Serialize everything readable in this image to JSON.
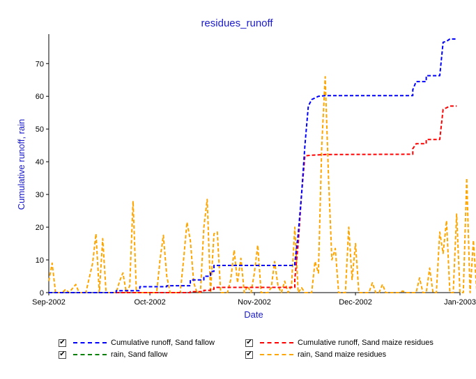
{
  "chart_data": {
    "type": "line",
    "title": "residues_runoff",
    "xlabel": "Date",
    "ylabel": "Cumulative runoff, rain",
    "xlim": [
      "2002-09-01",
      "2003-01-01"
    ],
    "ylim": [
      0,
      79
    ],
    "x_ticks": [
      "Sep-2002",
      "Oct-2002",
      "Nov-2002",
      "Dec-2002",
      "Jan-2003"
    ],
    "y_ticks": [
      0,
      10,
      20,
      30,
      40,
      50,
      60,
      70
    ],
    "grid": false,
    "legend_position": "bottom",
    "series": [
      {
        "name": "Cumulative runoff, Sand fallow",
        "color": "#0000ff",
        "dash": true,
        "step": true,
        "points": [
          [
            "2002-09-01",
            0
          ],
          [
            "2002-09-21",
            0
          ],
          [
            "2002-09-21",
            0.6
          ],
          [
            "2002-09-28",
            0.6
          ],
          [
            "2002-09-28",
            1.8
          ],
          [
            "2002-10-06",
            1.8
          ],
          [
            "2002-10-06",
            2.1
          ],
          [
            "2002-10-13",
            2.1
          ],
          [
            "2002-10-13",
            3.9
          ],
          [
            "2002-10-17",
            3.9
          ],
          [
            "2002-10-17",
            5.0
          ],
          [
            "2002-10-19",
            5.0
          ],
          [
            "2002-10-19",
            6.5
          ],
          [
            "2002-10-20",
            6.5
          ],
          [
            "2002-10-20",
            8.3
          ],
          [
            "2002-11-13",
            8.3
          ],
          [
            "2002-11-13",
            9.0
          ],
          [
            "2002-11-14",
            18.0
          ],
          [
            "2002-11-15",
            30.0
          ],
          [
            "2002-11-16",
            45.0
          ],
          [
            "2002-11-17",
            57.0
          ],
          [
            "2002-11-18",
            59.0
          ],
          [
            "2002-11-19",
            59.5
          ],
          [
            "2002-11-20",
            60.0
          ],
          [
            "2002-11-22",
            60.2
          ],
          [
            "2002-12-18",
            60.2
          ],
          [
            "2002-12-18",
            62.0
          ],
          [
            "2002-12-19",
            64.5
          ],
          [
            "2002-12-22",
            64.5
          ],
          [
            "2002-12-22",
            66.3
          ],
          [
            "2002-12-26",
            66.3
          ],
          [
            "2002-12-27",
            76.5
          ],
          [
            "2002-12-28",
            76.8
          ],
          [
            "2002-12-29",
            77.5
          ],
          [
            "2002-12-31",
            77.5
          ]
        ]
      },
      {
        "name": "Cumulative runoff, Sand maize residues",
        "color": "#ff0000",
        "dash": true,
        "step": true,
        "points": [
          [
            "2002-09-01",
            0
          ],
          [
            "2002-10-13",
            0
          ],
          [
            "2002-10-13",
            0.3
          ],
          [
            "2002-10-17",
            0.3
          ],
          [
            "2002-10-17",
            0.7
          ],
          [
            "2002-10-19",
            0.7
          ],
          [
            "2002-10-19",
            1.0
          ],
          [
            "2002-10-20",
            1.0
          ],
          [
            "2002-10-20",
            1.6
          ],
          [
            "2002-11-13",
            1.6
          ],
          [
            "2002-11-13",
            4.0
          ],
          [
            "2002-11-14",
            15.0
          ],
          [
            "2002-11-15",
            30.0
          ],
          [
            "2002-11-16",
            41.8
          ],
          [
            "2002-11-18",
            42.0
          ],
          [
            "2002-11-22",
            42.2
          ],
          [
            "2002-12-18",
            42.3
          ],
          [
            "2002-12-18",
            44.0
          ],
          [
            "2002-12-19",
            45.5
          ],
          [
            "2002-12-22",
            45.5
          ],
          [
            "2002-12-22",
            46.8
          ],
          [
            "2002-12-26",
            46.8
          ],
          [
            "2002-12-27",
            56.0
          ],
          [
            "2002-12-28",
            56.5
          ],
          [
            "2002-12-29",
            57.0
          ],
          [
            "2002-12-31",
            57.0
          ]
        ]
      },
      {
        "name": "rain, Sand fallow",
        "color": "#008000",
        "dash": true,
        "step": false,
        "points": []
      },
      {
        "name": "rain, Sand maize residues",
        "color": "#ffa500",
        "dash": true,
        "step": false,
        "points": [
          [
            "2002-09-01",
            3.5
          ],
          [
            "2002-09-02",
            9.0
          ],
          [
            "2002-09-03",
            0
          ],
          [
            "2002-09-05",
            0
          ],
          [
            "2002-09-06",
            1.0
          ],
          [
            "2002-09-07",
            0
          ],
          [
            "2002-09-09",
            2.5
          ],
          [
            "2002-09-10",
            0
          ],
          [
            "2002-09-12",
            0
          ],
          [
            "2002-09-14",
            9.0
          ],
          [
            "2002-09-15",
            18.0
          ],
          [
            "2002-09-16",
            0
          ],
          [
            "2002-09-17",
            16.5
          ],
          [
            "2002-09-18",
            0
          ],
          [
            "2002-09-21",
            0
          ],
          [
            "2002-09-22",
            3.5
          ],
          [
            "2002-09-23",
            6.0
          ],
          [
            "2002-09-24",
            0
          ],
          [
            "2002-09-25",
            2.0
          ],
          [
            "2002-09-26",
            28.0
          ],
          [
            "2002-09-27",
            0
          ],
          [
            "2002-10-03",
            0
          ],
          [
            "2002-10-04",
            10.0
          ],
          [
            "2002-10-05",
            17.5
          ],
          [
            "2002-10-06",
            5.0
          ],
          [
            "2002-10-07",
            0
          ],
          [
            "2002-10-10",
            0
          ],
          [
            "2002-10-11",
            10.0
          ],
          [
            "2002-10-12",
            21.5
          ],
          [
            "2002-10-13",
            16.0
          ],
          [
            "2002-10-14",
            3.0
          ],
          [
            "2002-10-15",
            0
          ],
          [
            "2002-10-16",
            0
          ],
          [
            "2002-10-17",
            20.0
          ],
          [
            "2002-10-18",
            28.5
          ],
          [
            "2002-10-19",
            0
          ],
          [
            "2002-10-20",
            18.0
          ],
          [
            "2002-10-21",
            18.5
          ],
          [
            "2002-10-22",
            0
          ],
          [
            "2002-10-24",
            0
          ],
          [
            "2002-10-25",
            4.0
          ],
          [
            "2002-10-26",
            13.0
          ],
          [
            "2002-10-27",
            3.0
          ],
          [
            "2002-10-28",
            10.5
          ],
          [
            "2002-10-29",
            0
          ],
          [
            "2002-10-30",
            2.0
          ],
          [
            "2002-10-31",
            0
          ],
          [
            "2002-11-01",
            6.0
          ],
          [
            "2002-11-02",
            14.5
          ],
          [
            "2002-11-03",
            0
          ],
          [
            "2002-11-05",
            0
          ],
          [
            "2002-11-06",
            1.5
          ],
          [
            "2002-11-07",
            9.5
          ],
          [
            "2002-11-08",
            2.0
          ],
          [
            "2002-11-09",
            0
          ],
          [
            "2002-11-10",
            3.5
          ],
          [
            "2002-11-11",
            0
          ],
          [
            "2002-11-12",
            2.0
          ],
          [
            "2002-11-13",
            20.0
          ],
          [
            "2002-11-14",
            0
          ],
          [
            "2002-11-15",
            1.5
          ],
          [
            "2002-11-16",
            0
          ],
          [
            "2002-11-18",
            0
          ],
          [
            "2002-11-19",
            9.5
          ],
          [
            "2002-11-20",
            6.0
          ],
          [
            "2002-11-21",
            45.0
          ],
          [
            "2002-11-22",
            66.0
          ],
          [
            "2002-11-23",
            35.0
          ],
          [
            "2002-11-24",
            10.0
          ],
          [
            "2002-11-25",
            13.5
          ],
          [
            "2002-11-26",
            0
          ],
          [
            "2002-11-28",
            0
          ],
          [
            "2002-11-29",
            20.0
          ],
          [
            "2002-11-30",
            4.0
          ],
          [
            "2002-12-01",
            15.0
          ],
          [
            "2002-12-02",
            0
          ],
          [
            "2002-12-05",
            0
          ],
          [
            "2002-12-06",
            3.0
          ],
          [
            "2002-12-07",
            0
          ],
          [
            "2002-12-08",
            0
          ],
          [
            "2002-12-09",
            2.5
          ],
          [
            "2002-12-10",
            0
          ],
          [
            "2002-12-14",
            0
          ],
          [
            "2002-12-15",
            0.5
          ],
          [
            "2002-12-16",
            0
          ],
          [
            "2002-12-19",
            0
          ],
          [
            "2002-12-20",
            4.5
          ],
          [
            "2002-12-21",
            0
          ],
          [
            "2002-12-22",
            0
          ],
          [
            "2002-12-23",
            7.5
          ],
          [
            "2002-12-24",
            0
          ],
          [
            "2002-12-25",
            0
          ],
          [
            "2002-12-26",
            18.5
          ],
          [
            "2002-12-27",
            12.0
          ],
          [
            "2002-12-28",
            22.0
          ],
          [
            "2002-12-29",
            0
          ],
          [
            "2002-12-30",
            0
          ],
          [
            "2002-12-31",
            24.0
          ],
          [
            "2003-01-01",
            0
          ],
          [
            "2003-01-02",
            0
          ],
          [
            "2003-01-03",
            35.0
          ],
          [
            "2003-01-04",
            0
          ],
          [
            "2003-01-05",
            16.0
          ],
          [
            "2003-01-06",
            0
          ],
          [
            "2003-01-07",
            1.0
          ]
        ]
      }
    ]
  },
  "legend": {
    "items": [
      {
        "label": "Cumulative runoff, Sand fallow",
        "checked": "✔"
      },
      {
        "label": "Cumulative runoff, Sand maize residues",
        "checked": "✔"
      },
      {
        "label": "rain, Sand fallow",
        "checked": "✔"
      },
      {
        "label": "rain, Sand maize residues",
        "checked": "✔"
      }
    ]
  }
}
